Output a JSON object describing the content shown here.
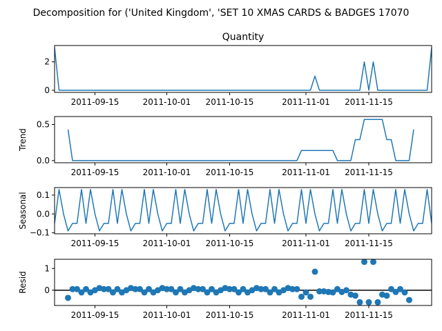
{
  "figure": {
    "suptitle": "Decomposition for ('United Kingdom', 'SET 10 XMAS CARDS & BADGES 17070"
  },
  "colors": {
    "series": "#1f77b4",
    "axis": "#000000"
  },
  "chart_data": [
    {
      "type": "line",
      "title": "Quantity",
      "ylabel": "",
      "xlim": [
        "2011-09-06",
        "2011-11-29"
      ],
      "ylim": [
        -0.15,
        3.15
      ],
      "yticks": [
        0,
        2
      ],
      "xtick_labels": [
        "2011-09-15",
        "2011-10-01",
        "2011-10-15",
        "2011-11-01",
        "2011-11-15"
      ],
      "x_start": "2011-09-06",
      "values": [
        3,
        0,
        0,
        0,
        0,
        0,
        0,
        0,
        0,
        0,
        0,
        0,
        0,
        0,
        0,
        0,
        0,
        0,
        0,
        0,
        0,
        0,
        0,
        0,
        0,
        0,
        0,
        0,
        0,
        0,
        0,
        0,
        0,
        0,
        0,
        0,
        0,
        0,
        0,
        0,
        0,
        0,
        0,
        0,
        0,
        0,
        0,
        0,
        0,
        0,
        0,
        0,
        0,
        0,
        0,
        0,
        0,
        0,
        1,
        0,
        0,
        0,
        0,
        0,
        0,
        0,
        0,
        0,
        0,
        2,
        0,
        2,
        0,
        0,
        0,
        0,
        0,
        0,
        0,
        0,
        0,
        0,
        0,
        0,
        3
      ]
    },
    {
      "type": "line",
      "title": "",
      "ylabel": "Trend",
      "xlim": [
        "2011-09-06",
        "2011-11-29"
      ],
      "ylim": [
        -0.03,
        0.61
      ],
      "yticks": [
        0.0,
        0.5
      ],
      "ytick_labels": [
        "0.0",
        "0.5"
      ],
      "xtick_labels": [
        "2011-09-15",
        "2011-10-01",
        "2011-10-15",
        "2011-11-01",
        "2011-11-15"
      ],
      "x_start": "2011-09-06",
      "values": [
        null,
        null,
        null,
        0.43,
        0,
        0,
        0,
        0,
        0,
        0,
        0,
        0,
        0,
        0,
        0,
        0,
        0,
        0,
        0,
        0,
        0,
        0,
        0,
        0,
        0,
        0,
        0,
        0,
        0,
        0,
        0,
        0,
        0,
        0,
        0,
        0,
        0,
        0,
        0,
        0,
        0,
        0,
        0,
        0,
        0,
        0,
        0,
        0,
        0,
        0,
        0,
        0,
        0,
        0,
        0,
        0.14,
        0.14,
        0.14,
        0.14,
        0.14,
        0.14,
        0.14,
        0.14,
        0,
        0,
        0,
        0,
        0.29,
        0.29,
        0.57,
        0.57,
        0.57,
        0.57,
        0.57,
        0.29,
        0.29,
        0,
        0,
        0,
        0,
        0.43,
        null,
        null,
        null,
        null
      ]
    },
    {
      "type": "line",
      "title": "",
      "ylabel": "Seasonal",
      "xlim": [
        "2011-09-06",
        "2011-11-29"
      ],
      "ylim": [
        -0.105,
        0.14
      ],
      "yticks": [
        0.1,
        0.0,
        -0.1
      ],
      "ytick_labels": [
        "0.1",
        "0.0",
        "−0.1"
      ],
      "xtick_labels": [
        "2011-09-15",
        "2011-10-01",
        "2011-10-15",
        "2011-11-01",
        "2011-11-15"
      ],
      "x_start": "2011-09-06",
      "season": [
        -0.05,
        0.13,
        0.0,
        -0.09,
        -0.05,
        -0.05,
        0.13
      ]
    },
    {
      "type": "scatter",
      "title": "",
      "ylabel": "Resid",
      "xlim": [
        "2011-09-06",
        "2011-11-29"
      ],
      "ylim": [
        -0.7,
        1.42
      ],
      "yticks": [
        0,
        1
      ],
      "xtick_labels": [
        "2011-09-15",
        "2011-10-01",
        "2011-10-15",
        "2011-11-01",
        "2011-11-15"
      ],
      "x_start": "2011-09-06",
      "hline": 0,
      "values": [
        null,
        null,
        null,
        -0.35,
        0.05,
        0.05,
        -0.1,
        0.05,
        -0.1,
        0.0,
        0.1,
        0.05,
        0.05,
        -0.1,
        0.05,
        -0.1,
        0.0,
        0.1,
        0.05,
        0.05,
        -0.1,
        0.05,
        -0.1,
        0.0,
        0.1,
        0.05,
        0.05,
        -0.1,
        0.05,
        -0.1,
        0.0,
        0.1,
        0.05,
        0.05,
        -0.1,
        0.05,
        -0.1,
        0.0,
        0.1,
        0.05,
        0.05,
        -0.1,
        0.05,
        -0.1,
        0.0,
        0.1,
        0.05,
        0.05,
        -0.1,
        0.05,
        -0.1,
        0.0,
        0.1,
        0.05,
        0.05,
        -0.3,
        -0.1,
        -0.3,
        0.85,
        -0.05,
        -0.05,
        -0.08,
        -0.1,
        0.05,
        -0.08,
        0.0,
        -0.2,
        -0.25,
        -0.55,
        1.3,
        -0.55,
        1.3,
        -0.55,
        -0.2,
        -0.25,
        0.05,
        -0.08,
        0.05,
        -0.1,
        -0.45,
        null,
        null,
        null,
        null
      ]
    }
  ]
}
